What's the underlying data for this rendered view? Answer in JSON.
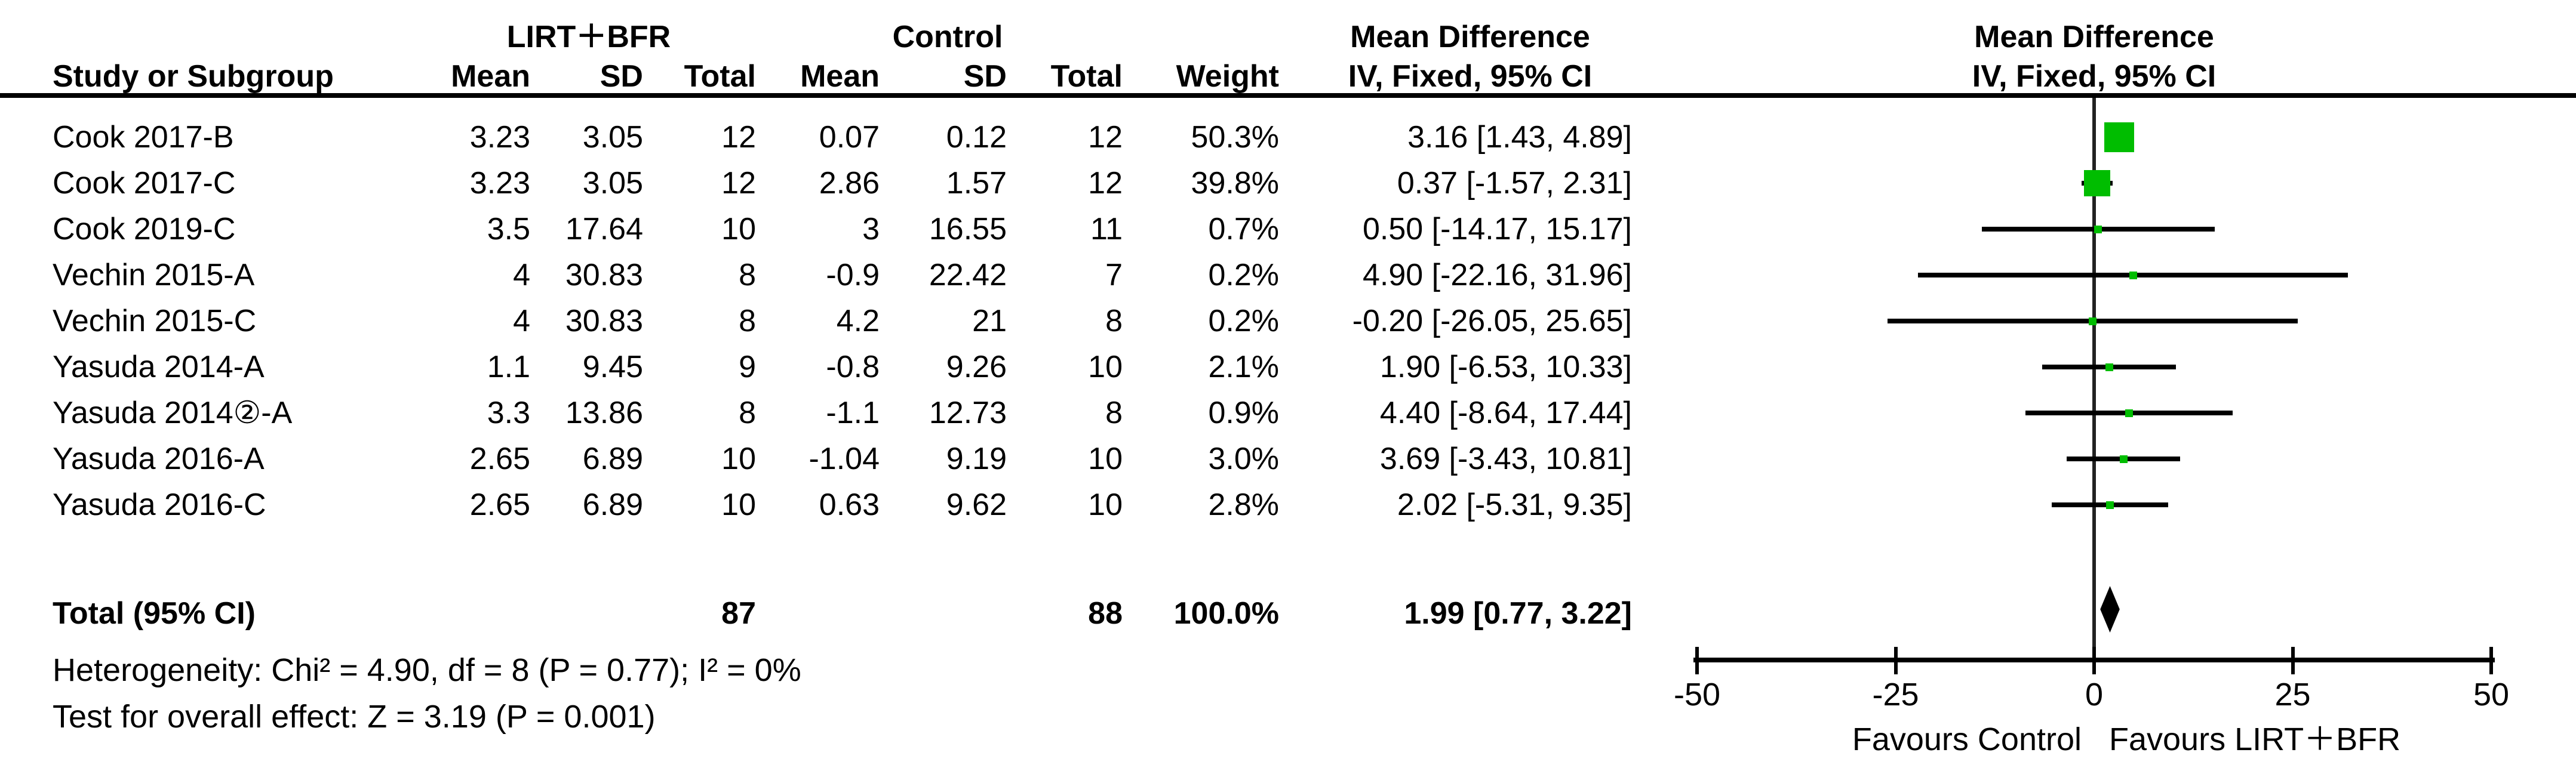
{
  "chart_data": {
    "type": "forest",
    "effect_measure": "Mean Difference",
    "method": "IV, Fixed, 95% CI",
    "header": {
      "study_col": "Study or Subgroup",
      "group1": "LIRT＋BFR",
      "group2": "Control",
      "effect_col": "Mean Difference",
      "effect_sub": "IV, Fixed, 95% CI",
      "plot_col": "Mean Difference",
      "plot_sub": "IV, Fixed, 95% CI",
      "cols": [
        "Mean",
        "SD",
        "Total",
        "Mean",
        "SD",
        "Total",
        "Weight"
      ]
    },
    "studies": [
      {
        "study": "Cook 2017-B",
        "mean_exp": "3.23",
        "sd_exp": "3.05",
        "n_exp": "12",
        "mean_ctrl": "0.07",
        "sd_ctrl": "0.12",
        "n_ctrl": "12",
        "weight": "50.3%",
        "weight_val": 50.3,
        "ci_label": "3.16 [1.43, 4.89]",
        "md": 3.16,
        "ci_low": 1.43,
        "ci_high": 4.89
      },
      {
        "study": "Cook 2017-C",
        "mean_exp": "3.23",
        "sd_exp": "3.05",
        "n_exp": "12",
        "mean_ctrl": "2.86",
        "sd_ctrl": "1.57",
        "n_ctrl": "12",
        "weight": "39.8%",
        "weight_val": 39.8,
        "ci_label": "0.37 [-1.57, 2.31]",
        "md": 0.37,
        "ci_low": -1.57,
        "ci_high": 2.31
      },
      {
        "study": "Cook 2019-C",
        "mean_exp": "3.5",
        "sd_exp": "17.64",
        "n_exp": "10",
        "mean_ctrl": "3",
        "sd_ctrl": "16.55",
        "n_ctrl": "11",
        "weight": "0.7%",
        "weight_val": 0.7,
        "ci_label": "0.50 [-14.17, 15.17]",
        "md": 0.5,
        "ci_low": -14.17,
        "ci_high": 15.17
      },
      {
        "study": "Vechin 2015-A",
        "mean_exp": "4",
        "sd_exp": "30.83",
        "n_exp": "8",
        "mean_ctrl": "-0.9",
        "sd_ctrl": "22.42",
        "n_ctrl": "7",
        "weight": "0.2%",
        "weight_val": 0.2,
        "ci_label": "4.90 [-22.16, 31.96]",
        "md": 4.9,
        "ci_low": -22.16,
        "ci_high": 31.96
      },
      {
        "study": "Vechin 2015-C",
        "mean_exp": "4",
        "sd_exp": "30.83",
        "n_exp": "8",
        "mean_ctrl": "4.2",
        "sd_ctrl": "21",
        "n_ctrl": "8",
        "weight": "0.2%",
        "weight_val": 0.2,
        "ci_label": "-0.20 [-26.05, 25.65]",
        "md": -0.2,
        "ci_low": -26.05,
        "ci_high": 25.65
      },
      {
        "study": "Yasuda 2014-A",
        "mean_exp": "1.1",
        "sd_exp": "9.45",
        "n_exp": "9",
        "mean_ctrl": "-0.8",
        "sd_ctrl": "9.26",
        "n_ctrl": "10",
        "weight": "2.1%",
        "weight_val": 2.1,
        "ci_label": "1.90 [-6.53, 10.33]",
        "md": 1.9,
        "ci_low": -6.53,
        "ci_high": 10.33
      },
      {
        "study": "Yasuda 2014②-A",
        "mean_exp": "3.3",
        "sd_exp": "13.86",
        "n_exp": "8",
        "mean_ctrl": "-1.1",
        "sd_ctrl": "12.73",
        "n_ctrl": "8",
        "weight": "0.9%",
        "weight_val": 0.9,
        "ci_label": "4.40 [-8.64, 17.44]",
        "md": 4.4,
        "ci_low": -8.64,
        "ci_high": 17.44
      },
      {
        "study": "Yasuda 2016-A",
        "mean_exp": "2.65",
        "sd_exp": "6.89",
        "n_exp": "10",
        "mean_ctrl": "-1.04",
        "sd_ctrl": "9.19",
        "n_ctrl": "10",
        "weight": "3.0%",
        "weight_val": 3.0,
        "ci_label": "3.69 [-3.43, 10.81]",
        "md": 3.69,
        "ci_low": -3.43,
        "ci_high": 10.81
      },
      {
        "study": "Yasuda 2016-C",
        "mean_exp": "2.65",
        "sd_exp": "6.89",
        "n_exp": "10",
        "mean_ctrl": "0.63",
        "sd_ctrl": "9.62",
        "n_ctrl": "10",
        "weight": "2.8%",
        "weight_val": 2.8,
        "ci_label": "2.02 [-5.31, 9.35]",
        "md": 2.02,
        "ci_low": -5.31,
        "ci_high": 9.35
      }
    ],
    "total": {
      "label": "Total (95% CI)",
      "n_exp": "87",
      "n_ctrl": "88",
      "weight": "100.0%",
      "ci_label": "1.99 [0.77, 3.22]",
      "md": 1.99,
      "ci_low": 0.77,
      "ci_high": 3.22
    },
    "footnotes": {
      "heterogeneity": "Heterogeneity: Chi² = 4.90, df = 8 (P = 0.77); I² = 0%",
      "overall_effect": "Test for overall effect: Z = 3.19 (P = 0.001)"
    },
    "axis": {
      "min": -50,
      "max": 50,
      "ticks": [
        -50,
        -25,
        0,
        25,
        50
      ],
      "tick_labels": [
        "-50",
        "-25",
        "0",
        "25",
        "50"
      ],
      "favours_left": "Favours Control",
      "favours_right": "Favours LIRT＋BFR"
    },
    "colors": {
      "marker_green": "#00BD00",
      "line_black": "#000000"
    }
  }
}
